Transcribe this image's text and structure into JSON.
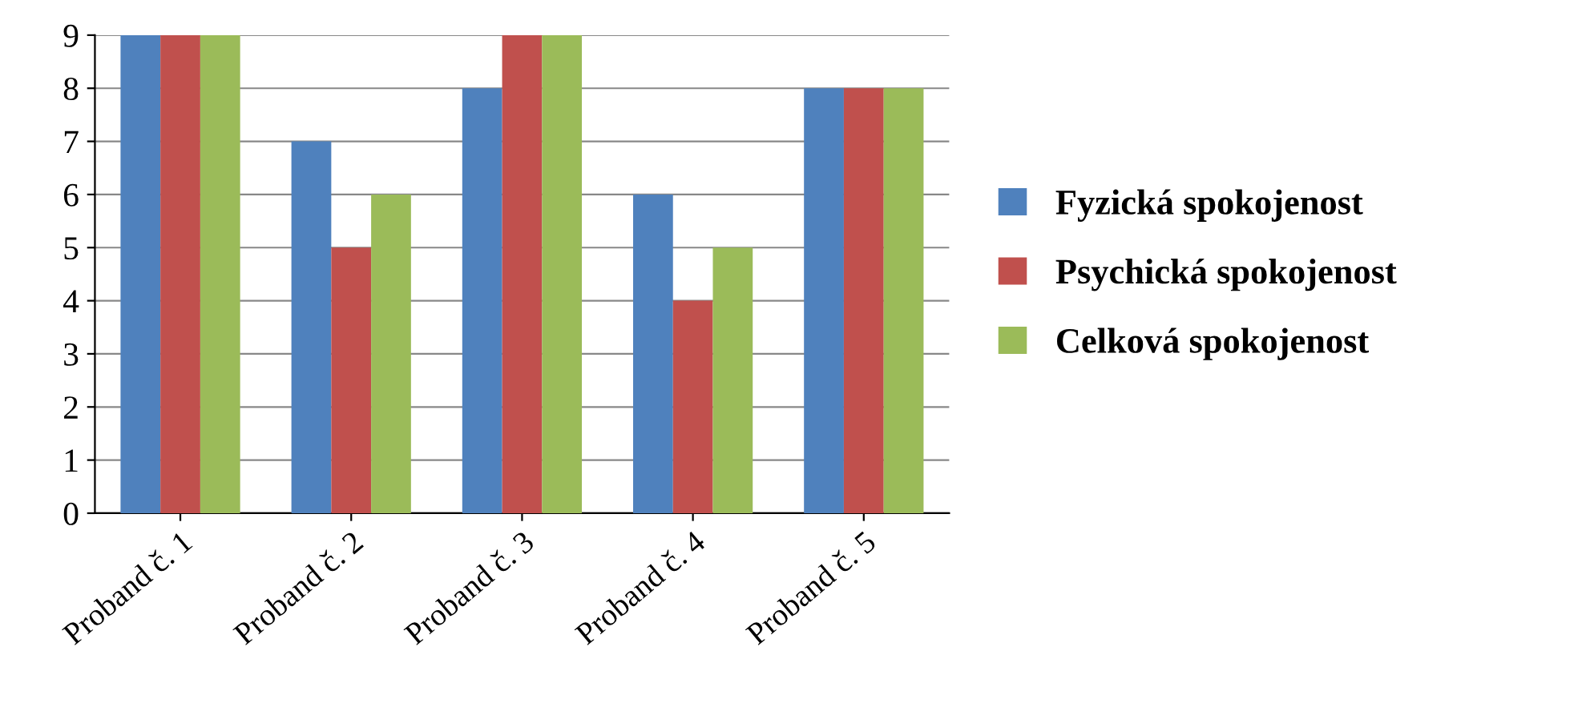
{
  "chart_data": {
    "type": "bar",
    "categories": [
      "Proband č. 1",
      "Proband č. 2",
      "Proband č. 3",
      "Proband č. 4",
      "Proband č. 5"
    ],
    "series": [
      {
        "name": "Fyzická spokojenost",
        "color": "#4f81bd",
        "values": [
          9,
          7,
          8,
          6,
          8
        ]
      },
      {
        "name": "Psychická spokojenost",
        "color": "#c0504d",
        "values": [
          9,
          5,
          9,
          4,
          8
        ]
      },
      {
        "name": "Celková spokojenost",
        "color": "#9bbb59",
        "values": [
          9,
          6,
          9,
          5,
          8
        ]
      }
    ],
    "ylim": [
      0,
      9
    ],
    "yticks": [
      0,
      1,
      2,
      3,
      4,
      5,
      6,
      7,
      8,
      9
    ],
    "grid": "y",
    "legend": "right"
  }
}
